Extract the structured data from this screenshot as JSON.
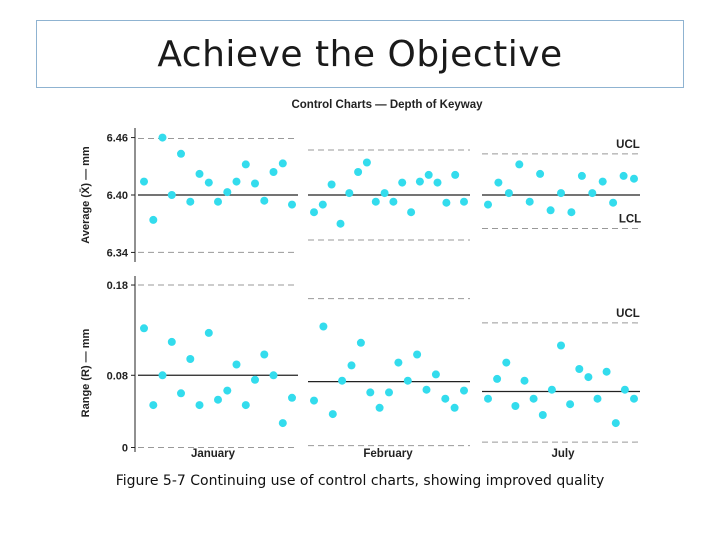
{
  "slide": {
    "title": "Achieve the Objective",
    "caption": "Figure 5-7 Continuing use of control charts, showing improved quality"
  },
  "chart_data": {
    "type": "scatter",
    "title": "Control Charts — Depth of Keyway",
    "months": [
      "January",
      "February",
      "July"
    ],
    "colors": {
      "point": "#33dced",
      "center": "#222222",
      "limit": "#999999"
    },
    "average_chart": {
      "ylabel": "Average (X̄) — mm",
      "ylim": [
        6.33,
        6.47
      ],
      "ticks": [
        "6.46",
        "6.40",
        "6.34"
      ],
      "tick_values": [
        6.46,
        6.4,
        6.34
      ],
      "center": [
        6.4,
        6.4,
        6.4
      ],
      "ucl": [
        6.459,
        6.447,
        6.443
      ],
      "lcl": [
        6.34,
        6.353,
        6.365
      ],
      "limit_labels": {
        "ucl": "UCL",
        "lcl": "LCL"
      },
      "series": [
        [
          6.414,
          6.374,
          6.46,
          6.4,
          6.443,
          6.393,
          6.422,
          6.413,
          6.393,
          6.403,
          6.414,
          6.432,
          6.412,
          6.394,
          6.424,
          6.433,
          6.39
        ],
        [
          6.382,
          6.39,
          6.411,
          6.37,
          6.402,
          6.424,
          6.434,
          6.393,
          6.402,
          6.393,
          6.413,
          6.382,
          6.414,
          6.421,
          6.413,
          6.392,
          6.421,
          6.393
        ],
        [
          6.39,
          6.413,
          6.402,
          6.432,
          6.393,
          6.422,
          6.384,
          6.402,
          6.382,
          6.42,
          6.402,
          6.414,
          6.392,
          6.42,
          6.417
        ]
      ]
    },
    "range_chart": {
      "ylabel": "Range (R) — mm",
      "ylim": [
        -0.005,
        0.19
      ],
      "ticks": [
        "0.18",
        "0.08",
        "0"
      ],
      "tick_values": [
        0.18,
        0.08,
        0
      ],
      "center": [
        0.08,
        0.073,
        0.062
      ],
      "ucl": [
        0.18,
        0.165,
        0.138
      ],
      "lcl": [
        0.0,
        0.002,
        0.006
      ],
      "limit_labels": {
        "ucl": "UCL"
      },
      "series": [
        [
          0.132,
          0.047,
          0.08,
          0.117,
          0.06,
          0.098,
          0.047,
          0.127,
          0.053,
          0.063,
          0.092,
          0.047,
          0.075,
          0.103,
          0.08,
          0.027,
          0.055
        ],
        [
          0.052,
          0.134,
          0.037,
          0.074,
          0.091,
          0.116,
          0.061,
          0.044,
          0.061,
          0.094,
          0.074,
          0.103,
          0.064,
          0.081,
          0.054,
          0.044,
          0.063
        ],
        [
          0.054,
          0.076,
          0.094,
          0.046,
          0.074,
          0.054,
          0.036,
          0.064,
          0.113,
          0.048,
          0.087,
          0.078,
          0.054,
          0.084,
          0.027,
          0.064,
          0.054
        ]
      ]
    }
  }
}
